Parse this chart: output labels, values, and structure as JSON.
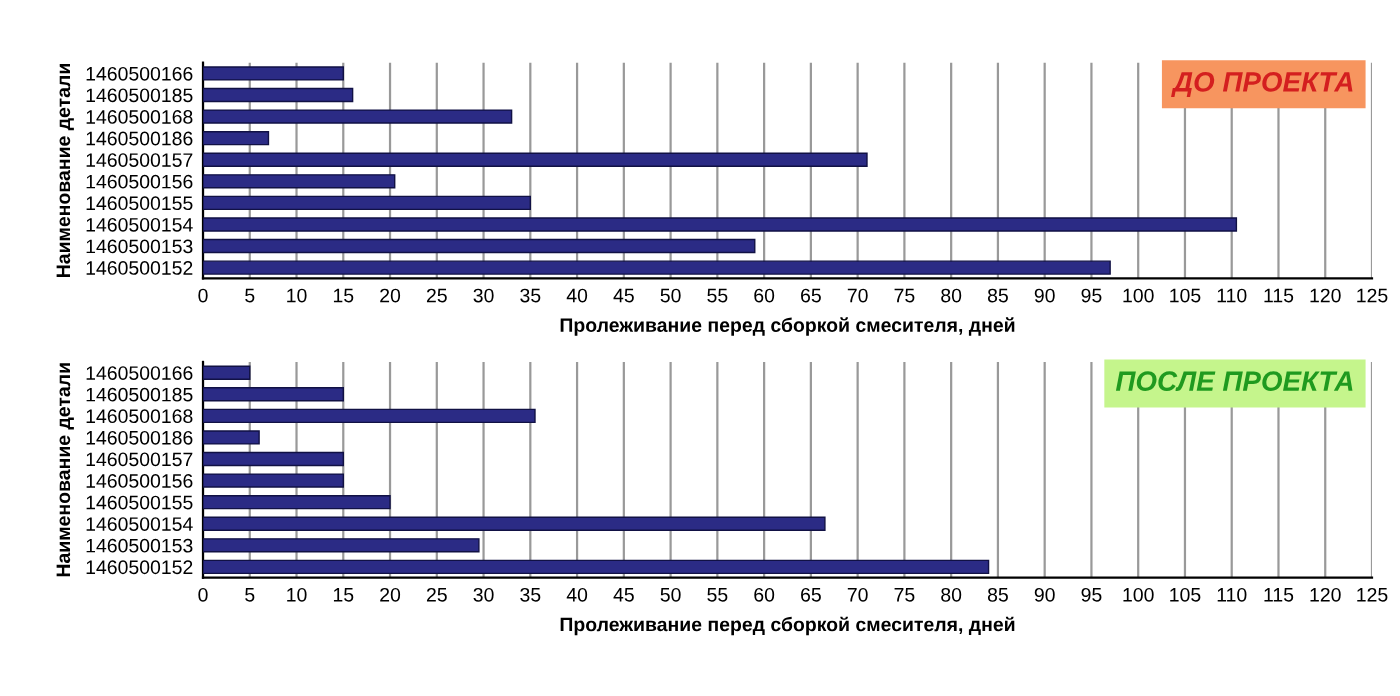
{
  "chart_data": [
    {
      "type": "bar",
      "orientation": "horizontal",
      "title": "ДО ПРОЕКТА",
      "xlabel": "Пролеживание перед сборкой смесителя, дней",
      "ylabel": "Наименование детали",
      "categories": [
        "1460500166",
        "1460500185",
        "1460500168",
        "1460500186",
        "1460500157",
        "1460500156",
        "1460500155",
        "1460500154",
        "1460500153",
        "1460500152"
      ],
      "values": [
        15,
        16,
        33,
        7,
        71,
        20.5,
        35,
        110.5,
        59,
        97
      ],
      "color": "#2b2b85",
      "xlim": [
        0,
        125
      ],
      "xticks": [
        0,
        5,
        10,
        15,
        20,
        25,
        30,
        35,
        40,
        45,
        50,
        55,
        60,
        65,
        70,
        75,
        80,
        85,
        90,
        95,
        100,
        105,
        110,
        115,
        120,
        125
      ],
      "grid": "x"
    },
    {
      "type": "bar",
      "orientation": "horizontal",
      "title": "ПОСЛЕ ПРОЕКТА",
      "xlabel": "Пролеживание перед сборкой смесителя, дней",
      "ylabel": "Наименование детали",
      "categories": [
        "1460500166",
        "1460500185",
        "1460500168",
        "1460500186",
        "1460500157",
        "1460500156",
        "1460500155",
        "1460500154",
        "1460500153",
        "1460500152"
      ],
      "values": [
        5,
        15,
        35.5,
        6,
        15,
        15,
        20,
        66.5,
        29.5,
        84
      ],
      "color": "#2b2b85",
      "xlim": [
        0,
        125
      ],
      "xticks": [
        0,
        5,
        10,
        15,
        20,
        25,
        30,
        35,
        40,
        45,
        50,
        55,
        60,
        65,
        70,
        75,
        80,
        85,
        90,
        95,
        100,
        105,
        110,
        115,
        120,
        125
      ],
      "grid": "x"
    }
  ]
}
